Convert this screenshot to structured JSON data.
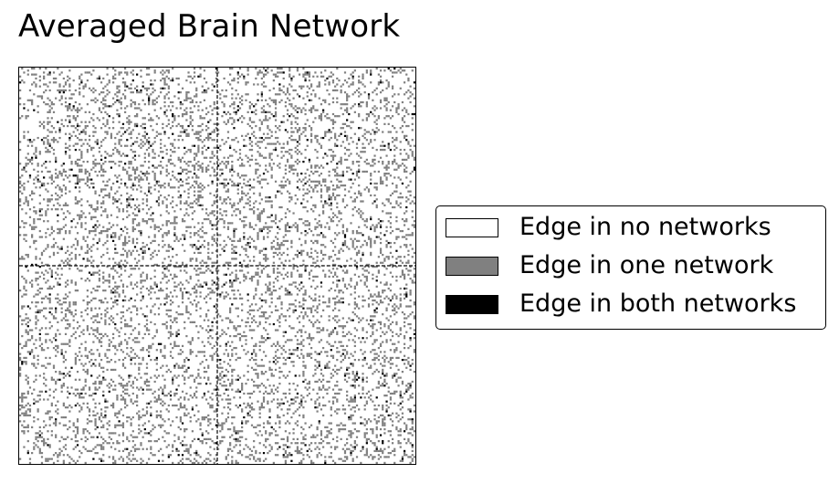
{
  "chart_data": {
    "type": "heatmap",
    "title": "Averaged Brain Network",
    "xlabel": "",
    "ylabel": "",
    "matrix_size": 200,
    "divider_at": 100,
    "values": [
      0,
      1,
      2
    ],
    "density": {
      "one_network": 0.18,
      "both_networks": 0.012
    },
    "legend": {
      "placement": "right",
      "entries": [
        {
          "label": "Edge in no networks",
          "value": 0,
          "color": "#ffffff"
        },
        {
          "label": "Edge in one network",
          "value": 1,
          "color": "#808080"
        },
        {
          "label": "Edge in both networks",
          "value": 2,
          "color": "#000000"
        }
      ]
    },
    "grid": false,
    "divider_style": "dashed"
  }
}
